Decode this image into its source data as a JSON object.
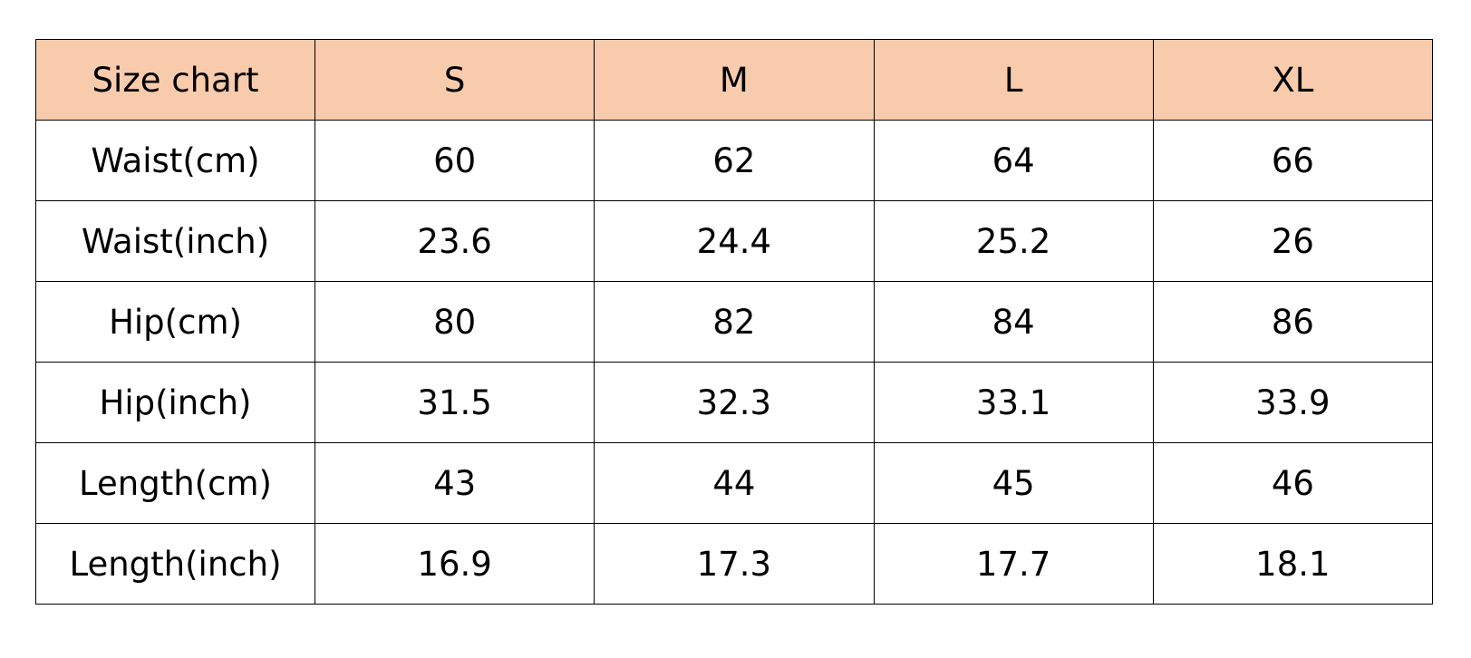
{
  "table": {
    "header_fill_color": "#f8cbad",
    "header": [
      "Size chart",
      "S",
      "M",
      "L",
      "XL"
    ],
    "rows": [
      {
        "label": "Waist(cm)",
        "values": [
          "60",
          "62",
          "64",
          "66"
        ]
      },
      {
        "label": "Waist(inch)",
        "values": [
          "23.6",
          "24.4",
          "25.2",
          "26"
        ]
      },
      {
        "label": "Hip(cm)",
        "values": [
          "80",
          "82",
          "84",
          "86"
        ]
      },
      {
        "label": "Hip(inch)",
        "values": [
          "31.5",
          "32.3",
          "33.1",
          "33.9"
        ]
      },
      {
        "label": "Length(cm)",
        "values": [
          "43",
          "44",
          "45",
          "46"
        ]
      },
      {
        "label": "Length(inch)",
        "values": [
          "16.9",
          "17.3",
          "17.7",
          "18.1"
        ]
      }
    ]
  }
}
